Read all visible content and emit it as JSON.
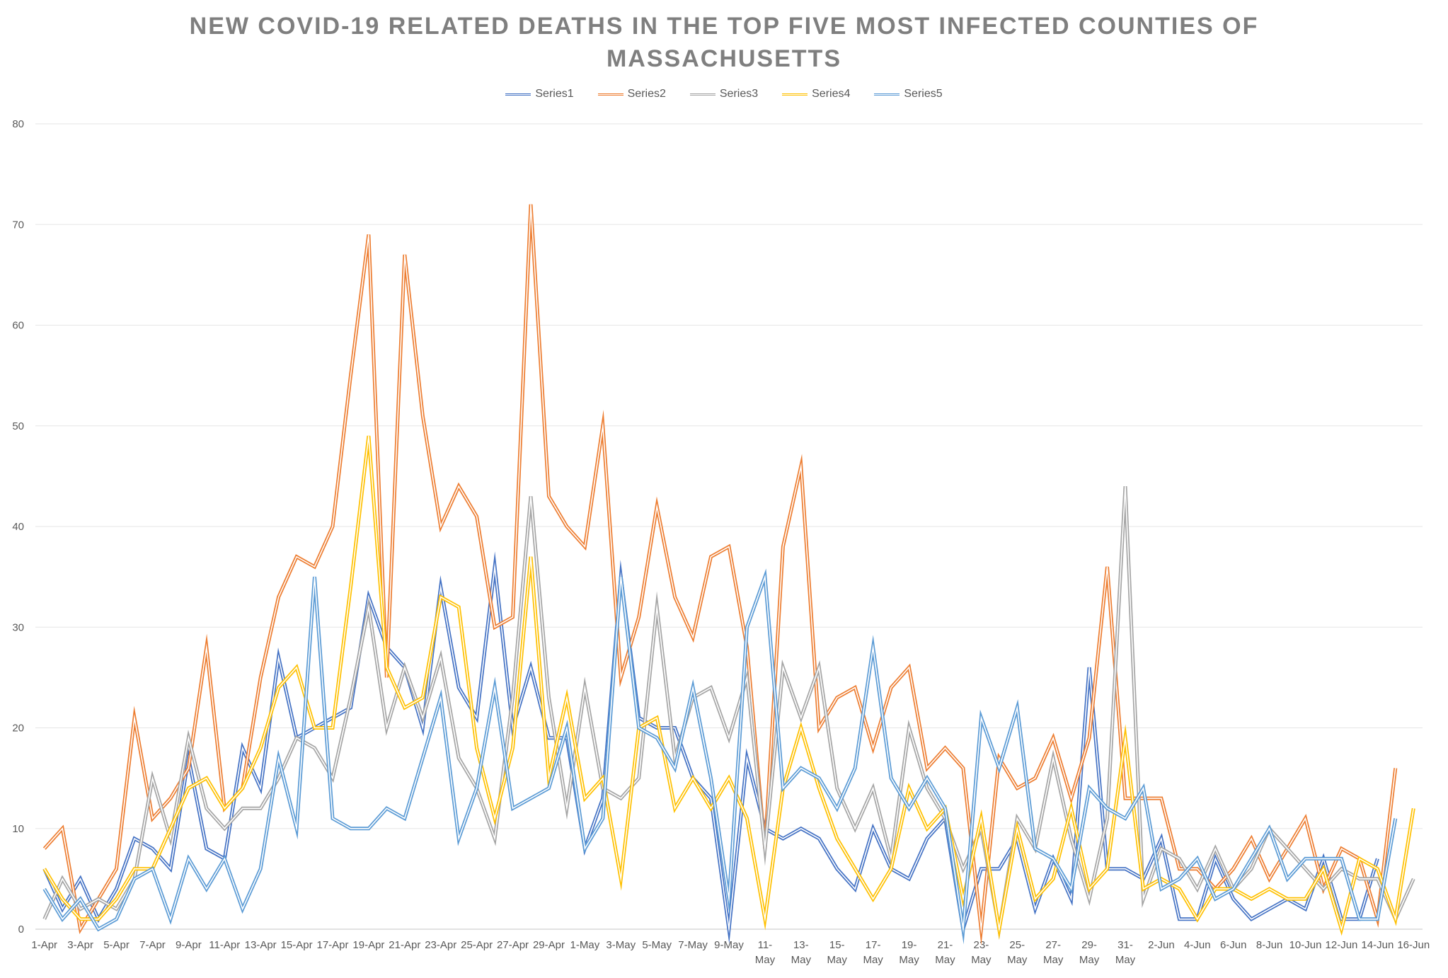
{
  "chart_data": {
    "type": "line",
    "title_lines": [
      "NEW COVID-19 RELATED DEATHS IN THE TOP FIVE MOST INFECTED COUNTIES OF",
      "MASSACHUSETTS"
    ],
    "xlabel": "",
    "ylabel": "",
    "ylim": [
      0,
      80
    ],
    "y_ticks": [
      "0",
      "10",
      "20",
      "30",
      "40",
      "50",
      "60",
      "70",
      "80"
    ],
    "grid": "horizontal",
    "legend_position": "top",
    "x_tick_labels": [
      [
        "1-Apr"
      ],
      [
        "3-Apr"
      ],
      [
        "5-Apr"
      ],
      [
        "7-Apr"
      ],
      [
        "9-Apr"
      ],
      [
        "11-Apr"
      ],
      [
        "13-Apr"
      ],
      [
        "15-Apr"
      ],
      [
        "17-Apr"
      ],
      [
        "19-Apr"
      ],
      [
        "21-Apr"
      ],
      [
        "23-Apr"
      ],
      [
        "25-Apr"
      ],
      [
        "27-Apr"
      ],
      [
        "29-Apr"
      ],
      [
        "1-May"
      ],
      [
        "3-May"
      ],
      [
        "5-May"
      ],
      [
        "7-May"
      ],
      [
        "9-May"
      ],
      [
        "11-",
        "May"
      ],
      [
        "13-",
        "May"
      ],
      [
        "15-",
        "May"
      ],
      [
        "17-",
        "May"
      ],
      [
        "19-",
        "May"
      ],
      [
        "21-",
        "May"
      ],
      [
        "23-",
        "May"
      ],
      [
        "25-",
        "May"
      ],
      [
        "27-",
        "May"
      ],
      [
        "29-",
        "May"
      ],
      [
        "31-",
        "May"
      ],
      [
        "2-Jun"
      ],
      [
        "4-Jun"
      ],
      [
        "6-Jun"
      ],
      [
        "8-Jun"
      ],
      [
        "10-Jun"
      ],
      [
        "12-Jun"
      ],
      [
        "14-Jun"
      ],
      [
        "16-Jun"
      ]
    ],
    "series": [
      {
        "name": "Series1",
        "color": "#4472c4",
        "values": [
          6,
          2,
          5,
          1,
          4,
          9,
          8,
          6,
          17,
          8,
          7,
          18,
          14,
          27,
          19,
          20,
          21,
          22,
          33,
          28,
          26,
          20,
          34,
          24,
          21,
          36,
          20,
          26,
          19,
          19,
          8,
          13,
          35,
          21,
          20,
          20,
          15,
          13,
          0,
          17,
          10,
          9,
          10,
          9,
          6,
          4,
          10,
          6,
          5,
          9,
          11,
          0,
          6,
          6,
          9,
          2,
          7,
          3,
          26,
          6,
          6,
          5,
          9,
          1,
          1,
          7,
          3,
          1,
          2,
          3,
          2,
          7,
          1,
          1,
          7
        ]
      },
      {
        "name": "Series2",
        "color": "#ed7d31",
        "values": [
          8,
          10,
          0,
          3,
          6,
          21,
          11,
          13,
          16,
          28,
          12,
          14,
          25,
          33,
          37,
          36,
          40,
          55,
          69,
          25,
          67,
          51,
          40,
          44,
          41,
          30,
          31,
          72,
          43,
          40,
          38,
          50,
          25,
          31,
          42,
          33,
          29,
          37,
          38,
          28,
          8,
          38,
          46,
          20,
          23,
          24,
          18,
          24,
          26,
          16,
          18,
          16,
          0,
          17,
          14,
          15,
          19,
          13,
          19,
          36,
          13,
          13,
          13,
          6,
          6,
          4,
          6,
          9,
          5,
          8,
          11,
          4,
          8,
          7,
          1,
          16
        ]
      },
      {
        "name": "Series3",
        "color": "#a5a5a5",
        "values": [
          1,
          5,
          2,
          3,
          2,
          5,
          15,
          9,
          19,
          12,
          10,
          12,
          12,
          15,
          19,
          18,
          15,
          23,
          32,
          20,
          26,
          21,
          27,
          17,
          14,
          9,
          23,
          43,
          23,
          12,
          24,
          14,
          13,
          15,
          32,
          17,
          23,
          24,
          19,
          25,
          8,
          26,
          21,
          26,
          14,
          10,
          14,
          7,
          20,
          14,
          11,
          6,
          10,
          0,
          11,
          8,
          17,
          9,
          3,
          11,
          44,
          3,
          8,
          7,
          4,
          8,
          4,
          6,
          10,
          8,
          6,
          4,
          6,
          5,
          5,
          1,
          5
        ]
      },
      {
        "name": "Series4",
        "color": "#ffc000",
        "values": [
          6,
          3,
          1,
          1,
          3,
          6,
          6,
          10,
          14,
          15,
          12,
          14,
          18,
          24,
          26,
          20,
          20,
          34,
          49,
          26,
          22,
          23,
          33,
          32,
          18,
          11,
          18,
          37,
          15,
          23,
          13,
          15,
          5,
          20,
          21,
          12,
          15,
          12,
          15,
          11,
          1,
          14,
          20,
          14,
          9,
          6,
          3,
          6,
          14,
          10,
          12,
          3,
          11,
          0,
          10,
          3,
          5,
          12,
          4,
          6,
          19,
          4,
          5,
          4,
          1,
          4,
          4,
          3,
          4,
          3,
          3,
          6,
          0,
          7,
          6,
          1,
          12
        ]
      },
      {
        "name": "Series5",
        "color": "#5b9bd5",
        "values": [
          4,
          1,
          3,
          0,
          1,
          5,
          6,
          1,
          7,
          4,
          7,
          2,
          6,
          17,
          10,
          35,
          11,
          10,
          10,
          12,
          11,
          17,
          23,
          9,
          14,
          24,
          12,
          13,
          14,
          20,
          8,
          11,
          35,
          20,
          19,
          16,
          24,
          15,
          3,
          30,
          35,
          14,
          16,
          15,
          12,
          16,
          28,
          15,
          12,
          15,
          12,
          0,
          21,
          16,
          22,
          8,
          7,
          4,
          14,
          12,
          11,
          14,
          4,
          5,
          7,
          3,
          4,
          7,
          10,
          5,
          7,
          7,
          7,
          1,
          1,
          11
        ]
      }
    ]
  }
}
